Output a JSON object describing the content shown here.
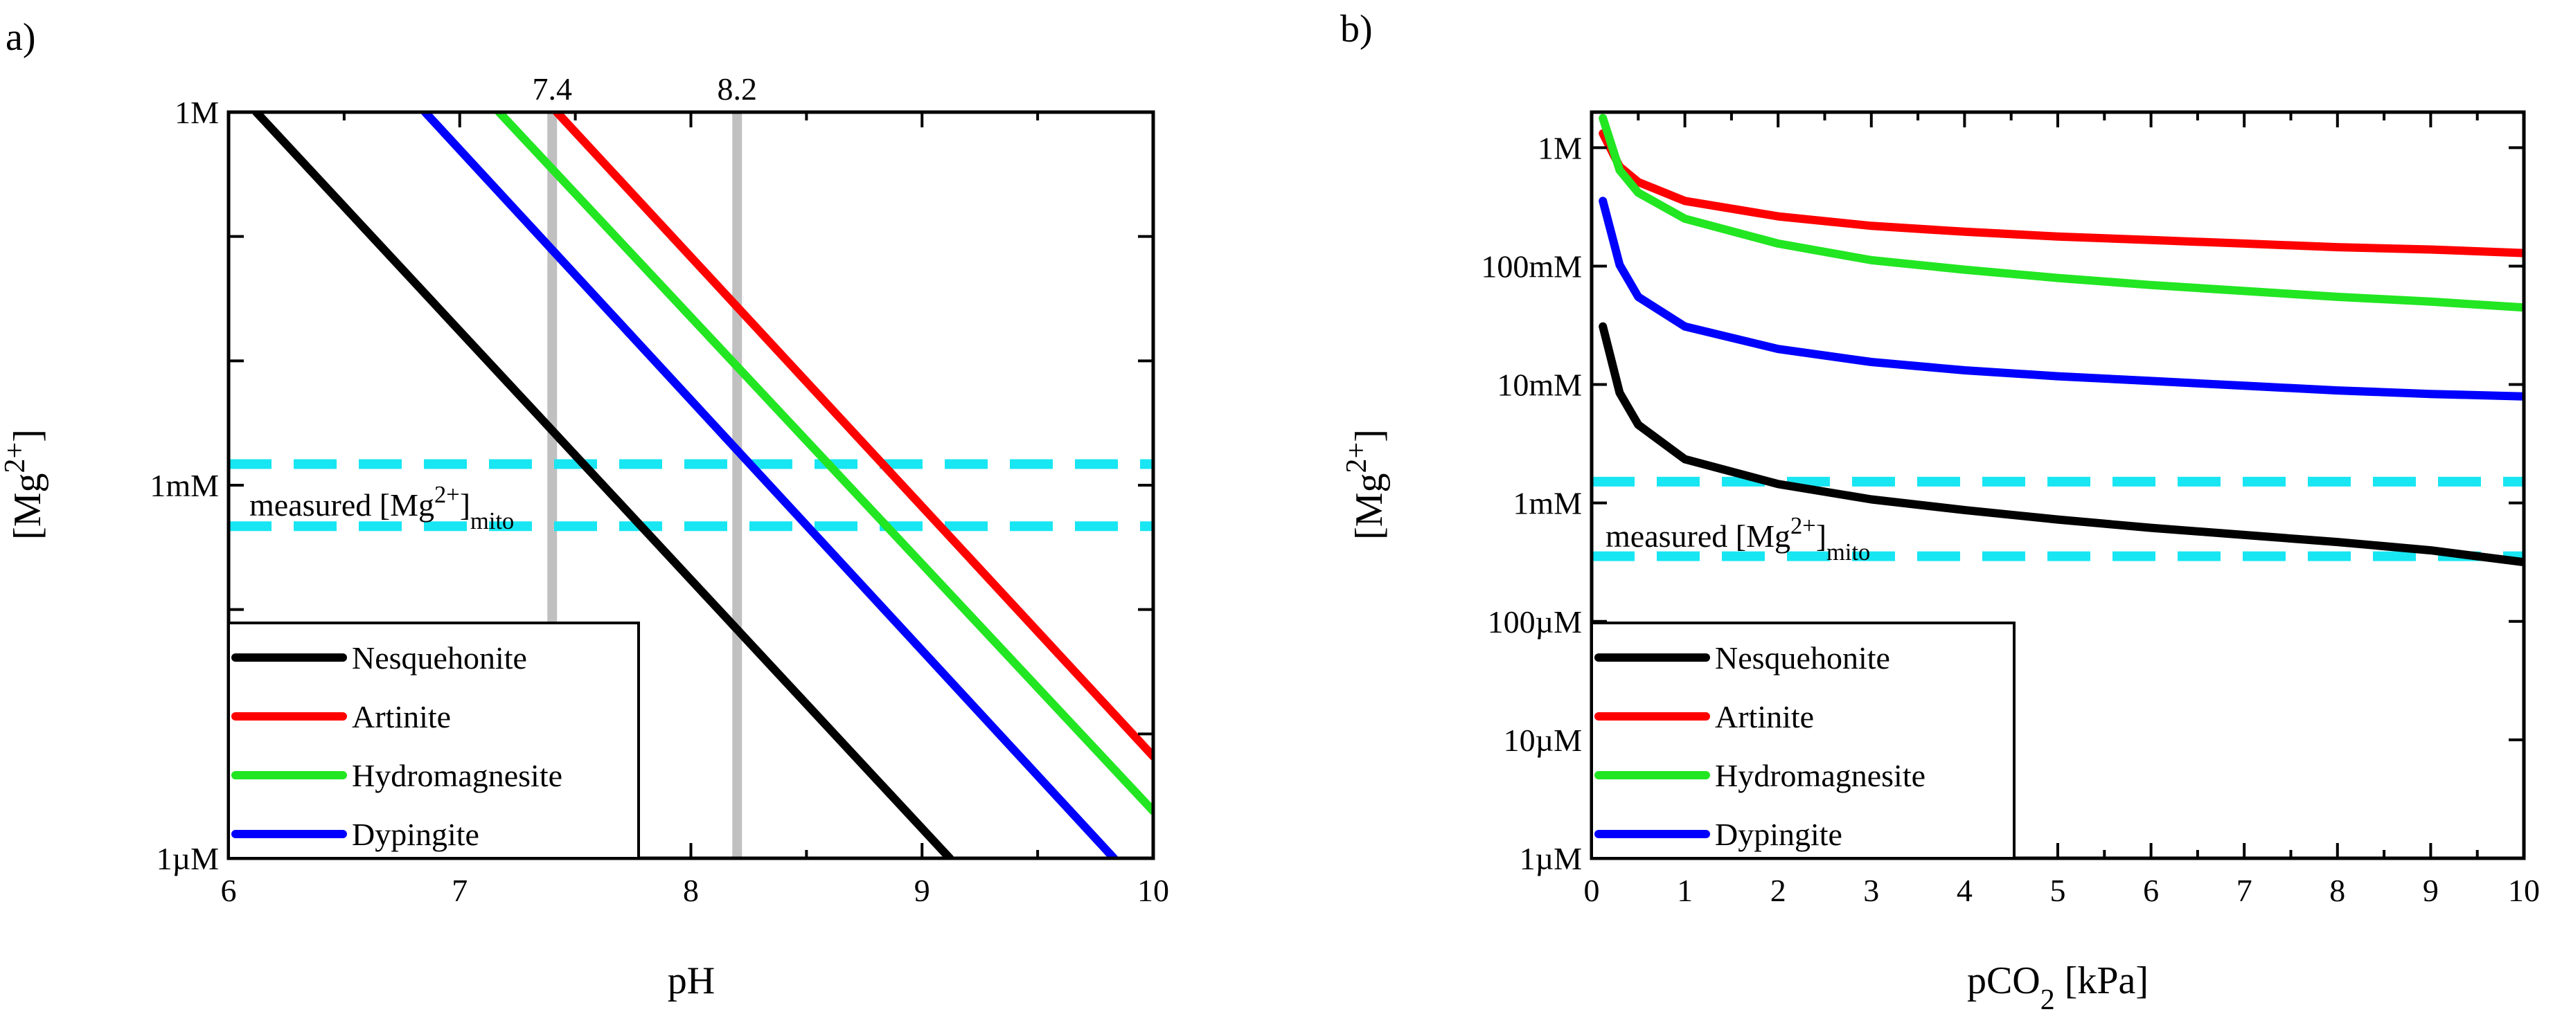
{
  "colors": {
    "nesquehonite": "#000000",
    "artinite": "#ff0000",
    "hydromagnesite": "#22e622",
    "dypingite": "#0000ff",
    "measured": "#18e6f2",
    "ph_marker": "#c0c0c0"
  },
  "legend": [
    {
      "key": "nesquehonite",
      "label": "Nesquehonite"
    },
    {
      "key": "artinite",
      "label": "Artinite"
    },
    {
      "key": "hydromagnesite",
      "label": "Hydromagnesite"
    },
    {
      "key": "dypingite",
      "label": "Dypingite"
    }
  ],
  "chart_data": [
    {
      "panel_label": "a)",
      "type": "line",
      "xlabel": "pH",
      "ylabel": "[Mg2+]",
      "xlim": [
        6,
        10
      ],
      "ylim_log10_M": [
        -6,
        0
      ],
      "x_ticks": [
        "6",
        "7",
        "8",
        "9",
        "10"
      ],
      "y_ticks": [
        {
          "log": 0,
          "label": "1M"
        },
        {
          "log": -3,
          "label": "1mM"
        },
        {
          "log": -6,
          "label": "1µM"
        }
      ],
      "vertical_markers": [
        {
          "x": 7.4,
          "label": "7.4"
        },
        {
          "x": 8.2,
          "label": "8.2"
        }
      ],
      "measured_band": {
        "label": "measured [Mg2+]mito",
        "log10_M": [
          -2.83,
          -3.33
        ]
      },
      "series": [
        {
          "key": "nesquehonite",
          "name": "Nesquehonite",
          "x": [
            6.12,
            9.12
          ],
          "log10_M": [
            0,
            -6
          ]
        },
        {
          "key": "artinite",
          "name": "Artinite",
          "x": [
            7.42,
            10.0
          ],
          "log10_M": [
            0,
            -5.18
          ]
        },
        {
          "key": "hydromagnesite",
          "name": "Hydromagnesite",
          "x": [
            7.17,
            10.0
          ],
          "log10_M": [
            0,
            -5.62
          ]
        },
        {
          "key": "dypingite",
          "name": "Dypingite",
          "x": [
            6.85,
            9.83
          ],
          "log10_M": [
            0,
            -6
          ]
        }
      ]
    },
    {
      "panel_label": "b)",
      "type": "line",
      "xlabel": "pCO2 [kPa]",
      "ylabel": "[Mg2+]",
      "xlim": [
        0,
        10
      ],
      "ylim_log10_M": [
        -6,
        0.3
      ],
      "x_ticks": [
        "0",
        "1",
        "2",
        "3",
        "4",
        "5",
        "6",
        "7",
        "8",
        "9",
        "10"
      ],
      "y_ticks": [
        {
          "log": 0,
          "label": "1M"
        },
        {
          "log": -1,
          "label": "100mM"
        },
        {
          "log": -2,
          "label": "10mM"
        },
        {
          "log": -3,
          "label": "1mM"
        },
        {
          "log": -4,
          "label": "100µM"
        },
        {
          "log": -5,
          "label": "10µM"
        },
        {
          "log": -6,
          "label": "1µM"
        }
      ],
      "measured_band": {
        "label": "measured [Mg2+]mito",
        "log10_M": [
          -2.82,
          -3.45
        ]
      },
      "series": [
        {
          "key": "nesquehonite",
          "name": "Nesquehonite",
          "x": [
            0.12,
            0.3,
            0.5,
            1,
            2,
            3,
            4,
            5,
            6,
            7,
            8,
            9,
            10
          ],
          "log10_M": [
            -1.51,
            -2.07,
            -2.34,
            -2.63,
            -2.84,
            -2.97,
            -3.06,
            -3.14,
            -3.21,
            -3.27,
            -3.33,
            -3.4,
            -3.5
          ]
        },
        {
          "key": "artinite",
          "name": "Artinite",
          "x": [
            0.12,
            0.3,
            0.5,
            1,
            2,
            3,
            4,
            5,
            6,
            7,
            8,
            9,
            10
          ],
          "log10_M": [
            0.12,
            -0.16,
            -0.29,
            -0.45,
            -0.58,
            -0.66,
            -0.71,
            -0.75,
            -0.78,
            -0.81,
            -0.84,
            -0.86,
            -0.89
          ]
        },
        {
          "key": "hydromagnesite",
          "name": "Hydromagnesite",
          "x": [
            0.12,
            0.3,
            0.5,
            1,
            2,
            3,
            4,
            5,
            6,
            7,
            8,
            9,
            10
          ],
          "log10_M": [
            0.25,
            -0.19,
            -0.38,
            -0.6,
            -0.81,
            -0.95,
            -1.03,
            -1.1,
            -1.16,
            -1.21,
            -1.26,
            -1.3,
            -1.35
          ]
        },
        {
          "key": "dypingite",
          "name": "Dypingite",
          "x": [
            0.12,
            0.3,
            0.5,
            1,
            2,
            3,
            4,
            5,
            6,
            7,
            8,
            9,
            10
          ],
          "log10_M": [
            -0.45,
            -0.99,
            -1.26,
            -1.51,
            -1.7,
            -1.81,
            -1.88,
            -1.93,
            -1.97,
            -2.01,
            -2.05,
            -2.08,
            -2.1
          ]
        }
      ]
    }
  ]
}
